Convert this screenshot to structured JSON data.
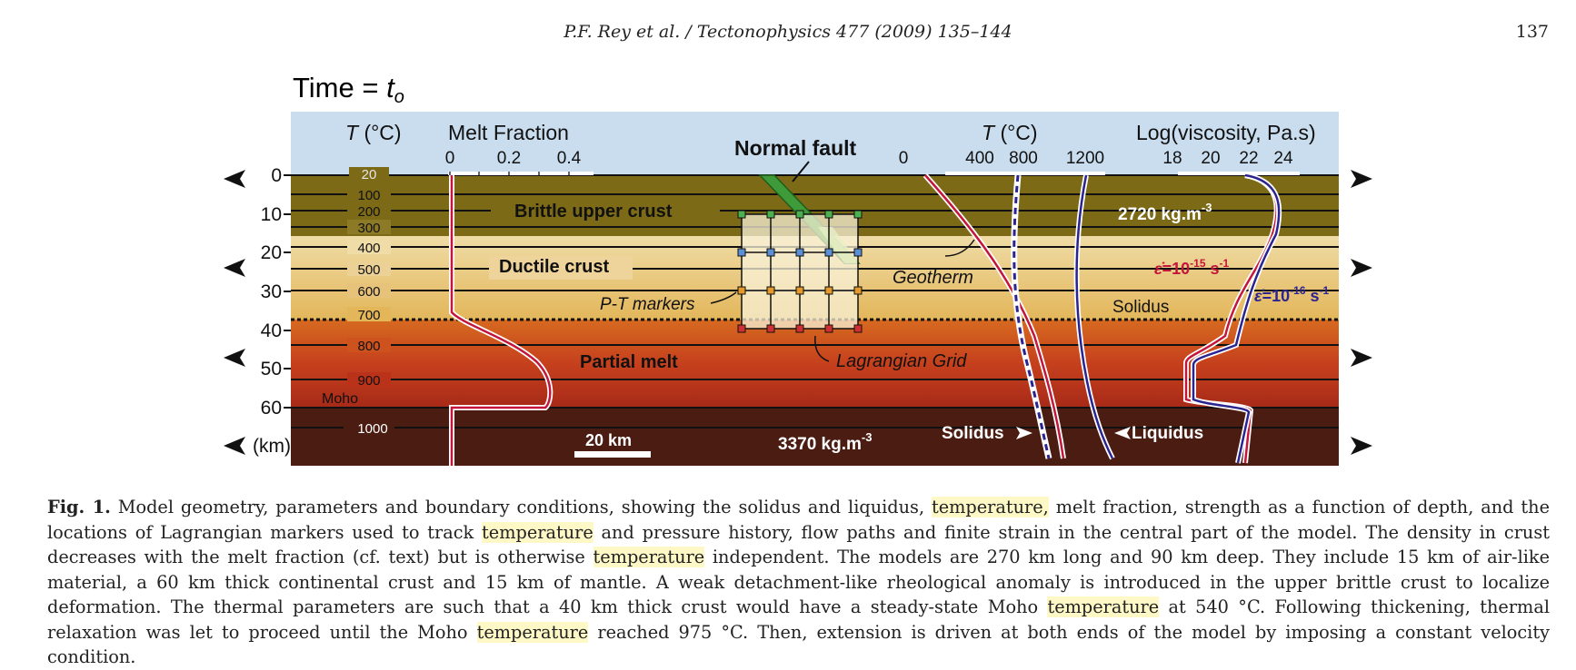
{
  "header": {
    "running_title": "P.F. Rey et al. / Tectonophysics 477 (2009) 135–144",
    "page_number": "137"
  },
  "figure": {
    "time_label": "Time = ",
    "time_symbol": "t",
    "time_subscript": "o",
    "melt_fraction": {
      "title": "Melt Fraction",
      "ticks": [
        "0",
        "0.2",
        "0.4"
      ]
    },
    "temperature_left": {
      "title_symbol": "T",
      "title_unit": " (°C)"
    },
    "temperature_right": {
      "title_symbol": "T",
      "title_unit": " (°C)",
      "ticks": [
        "0",
        "400",
        "800",
        "1200"
      ]
    },
    "viscosity": {
      "title": "Log(viscosity, Pa.s)",
      "ticks": [
        "18",
        "20",
        "22",
        "24"
      ]
    },
    "depth_axis": {
      "ticks": [
        "0",
        "10",
        "20",
        "30",
        "40",
        "50",
        "60"
      ],
      "unit": "(km)"
    },
    "isotherms": [
      "20",
      "100",
      "200",
      "300",
      "400",
      "500",
      "600",
      "700",
      "800",
      "900",
      "1000"
    ],
    "layers": {
      "brittle": "Brittle upper crust",
      "ductile": "Ductile crust",
      "partial_melt": "Partial melt",
      "moho": "Moho"
    },
    "annotations": {
      "normal_fault": "Normal fault",
      "pt_markers": "P-T markers",
      "lagrangian_grid": "Lagrangian Grid",
      "geotherm": "Geotherm",
      "solidus_label": "Solidus",
      "solidus_bottom": "Solidus",
      "liquidus": "Liquidus",
      "density_crust": "2720 kg.m",
      "density_crust_exp": "-3",
      "density_mantle": "3370 kg.m",
      "density_mantle_exp": "-3",
      "scale_bar": "20 km",
      "strain_rate_1_prefix": "=10",
      "strain_rate_1_exp": "-15",
      "strain_rate_1_unit": " s",
      "strain_rate_1_unit_exp": "-1",
      "strain_rate_2_prefix": "=10",
      "strain_rate_2_exp": "-16",
      "strain_rate_2_unit": " s",
      "strain_rate_2_unit_exp": "-1"
    },
    "colors": {
      "air": "#c9ddef",
      "brittle": "#7d6a16",
      "ductile": "#ecd69a",
      "melt": "#c8451f",
      "mantle": "#4b1c12",
      "red_curve": "#c4163b",
      "blue_curve": "#2b2490"
    }
  },
  "caption": {
    "label": "Fig. 1.",
    "segments": [
      {
        "t": " Model geometry, parameters and boundary conditions, showing the solidus and liquidus, ",
        "h": false
      },
      {
        "t": "temperature,",
        "h": true
      },
      {
        "t": " melt fraction, strength as a function of depth, and the locations of Lagrangian markers used to track ",
        "h": false
      },
      {
        "t": "temperature",
        "h": true
      },
      {
        "t": " and pressure history, flow paths and finite strain in the central part of the model. The density in crust decreases with the melt fraction (cf. text) but is otherwise ",
        "h": false
      },
      {
        "t": "temperature",
        "h": true
      },
      {
        "t": " independent. The models are 270 km long and 90 km deep. They include 15 km of air-like material, a 60 km thick continental crust and 15 km of mantle. A weak detachment-like rheological anomaly is introduced in the upper brittle crust to localize deformation. The thermal parameters are such that a 40 km thick crust would have a steady-state Moho ",
        "h": false
      },
      {
        "t": "temperature",
        "h": true
      },
      {
        "t": " at 540 °C. Following thickening, thermal relaxation was let to proceed until the Moho ",
        "h": false
      },
      {
        "t": "temperature",
        "h": true
      },
      {
        "t": " reached 975 °C. Then, extension is driven at both ends of the model by imposing a constant velocity condition.",
        "h": false
      }
    ]
  }
}
